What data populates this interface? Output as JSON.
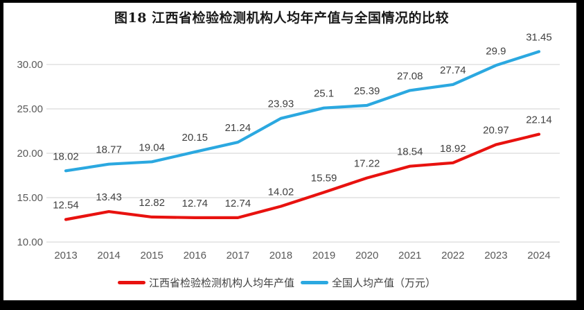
{
  "chart_data": {
    "type": "line",
    "title": "图18  江西省检验检测机构人均年产值与全国情况的比较",
    "categories": [
      "2013",
      "2014",
      "2015",
      "2016",
      "2017",
      "2018",
      "2019",
      "2020",
      "2021",
      "2022",
      "2023",
      "2024"
    ],
    "series": [
      {
        "name": "江西省检验检测机构人均年产值",
        "color": "#e8120f",
        "values": [
          12.54,
          13.43,
          12.82,
          12.74,
          12.74,
          14.02,
          15.59,
          17.22,
          18.54,
          18.92,
          20.97,
          22.14
        ]
      },
      {
        "name": "全国人均产值（万元）",
        "color": "#2ba8e0",
        "values": [
          18.02,
          18.77,
          19.04,
          20.15,
          21.24,
          23.93,
          25.1,
          25.39,
          27.08,
          27.74,
          29.9,
          31.45
        ]
      }
    ],
    "xlabel": "",
    "ylabel": "",
    "ylim": [
      10,
      30
    ],
    "yticks": [
      "10.00",
      "15.00",
      "20.00",
      "25.00",
      "30.00"
    ],
    "grid": true,
    "legend_position": "bottom",
    "data_labels": true,
    "colors": {
      "gridline": "#d9d9d9",
      "tick_text": "#595959",
      "data_label_text": "#3f3f3f",
      "title_text": "#191919",
      "frame": "#000000",
      "background": "#ffffff"
    }
  }
}
